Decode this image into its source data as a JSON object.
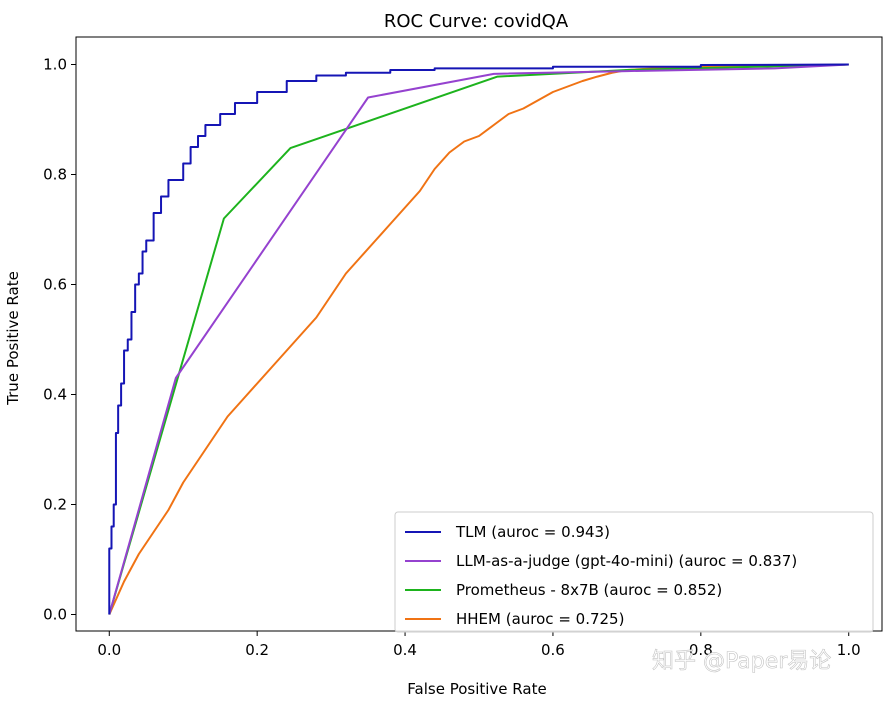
{
  "chart_data": {
    "type": "line",
    "title": "ROC Curve: covidQA",
    "xlabel": "False Positive Rate",
    "ylabel": "True Positive Rate",
    "xlim": [
      -0.045,
      1.045
    ],
    "ylim": [
      -0.03,
      1.05
    ],
    "xticks": [
      0.0,
      0.2,
      0.4,
      0.6,
      0.8,
      1.0
    ],
    "yticks": [
      0.0,
      0.2,
      0.4,
      0.6,
      0.8,
      1.0
    ],
    "xtick_labels": [
      "0.0",
      "0.2",
      "0.4",
      "0.6",
      "0.8",
      "1.0"
    ],
    "ytick_labels": [
      "0.0",
      "0.2",
      "0.4",
      "0.6",
      "0.8",
      "1.0"
    ],
    "legend_position": "lower-right",
    "series": [
      {
        "name": "TLM (auroc = 0.943)",
        "color": "#1515b5",
        "x": [
          0.0,
          0.0,
          0.003,
          0.003,
          0.006,
          0.006,
          0.009,
          0.009,
          0.012,
          0.012,
          0.016,
          0.016,
          0.02,
          0.02,
          0.025,
          0.025,
          0.03,
          0.03,
          0.035,
          0.035,
          0.04,
          0.04,
          0.045,
          0.045,
          0.05,
          0.05,
          0.06,
          0.06,
          0.07,
          0.07,
          0.08,
          0.08,
          0.1,
          0.1,
          0.11,
          0.11,
          0.12,
          0.12,
          0.13,
          0.13,
          0.15,
          0.15,
          0.17,
          0.17,
          0.2,
          0.2,
          0.24,
          0.24,
          0.28,
          0.28,
          0.32,
          0.32,
          0.38,
          0.38,
          0.44,
          0.44,
          0.6,
          0.6,
          0.8,
          0.8,
          1.0
        ],
        "y": [
          0.0,
          0.12,
          0.12,
          0.16,
          0.16,
          0.2,
          0.2,
          0.33,
          0.33,
          0.38,
          0.38,
          0.42,
          0.42,
          0.48,
          0.48,
          0.5,
          0.5,
          0.55,
          0.55,
          0.6,
          0.6,
          0.62,
          0.62,
          0.66,
          0.66,
          0.68,
          0.68,
          0.73,
          0.73,
          0.76,
          0.76,
          0.79,
          0.79,
          0.82,
          0.82,
          0.85,
          0.85,
          0.87,
          0.87,
          0.89,
          0.89,
          0.91,
          0.91,
          0.93,
          0.93,
          0.95,
          0.95,
          0.97,
          0.97,
          0.98,
          0.98,
          0.985,
          0.985,
          0.99,
          0.99,
          0.993,
          0.993,
          0.996,
          0.996,
          0.999,
          1.0
        ]
      },
      {
        "name": "LLM-as-a-judge (gpt-4o-mini) (auroc = 0.837)",
        "color": "#9542cf",
        "x": [
          0.0,
          0.09,
          0.35,
          0.52,
          0.7,
          0.9,
          1.0
        ],
        "y": [
          0.0,
          0.43,
          0.94,
          0.983,
          0.988,
          0.993,
          1.0
        ]
      },
      {
        "name": "Prometheus - 8x7B (auroc = 0.852)",
        "color": "#1db31d",
        "x": [
          0.0,
          0.155,
          0.245,
          0.525,
          0.7,
          1.0
        ],
        "y": [
          0.0,
          0.72,
          0.848,
          0.978,
          0.99,
          1.0
        ]
      },
      {
        "name": "HHEM (auroc = 0.725)",
        "color": "#f07314",
        "x": [
          0.0,
          0.02,
          0.04,
          0.06,
          0.08,
          0.1,
          0.12,
          0.14,
          0.16,
          0.18,
          0.2,
          0.22,
          0.24,
          0.26,
          0.28,
          0.3,
          0.32,
          0.34,
          0.36,
          0.38,
          0.4,
          0.42,
          0.44,
          0.46,
          0.48,
          0.5,
          0.52,
          0.54,
          0.56,
          0.58,
          0.6,
          0.62,
          0.64,
          0.66,
          0.68,
          0.7,
          0.75,
          0.8,
          0.9,
          1.0
        ],
        "y": [
          0.0,
          0.06,
          0.11,
          0.15,
          0.19,
          0.24,
          0.28,
          0.32,
          0.36,
          0.39,
          0.42,
          0.45,
          0.48,
          0.51,
          0.54,
          0.58,
          0.62,
          0.65,
          0.68,
          0.71,
          0.74,
          0.77,
          0.81,
          0.84,
          0.86,
          0.87,
          0.89,
          0.91,
          0.92,
          0.935,
          0.95,
          0.96,
          0.97,
          0.978,
          0.985,
          0.99,
          0.994,
          0.996,
          0.998,
          1.0
        ]
      }
    ]
  },
  "watermark": "知乎 @Paper易论"
}
